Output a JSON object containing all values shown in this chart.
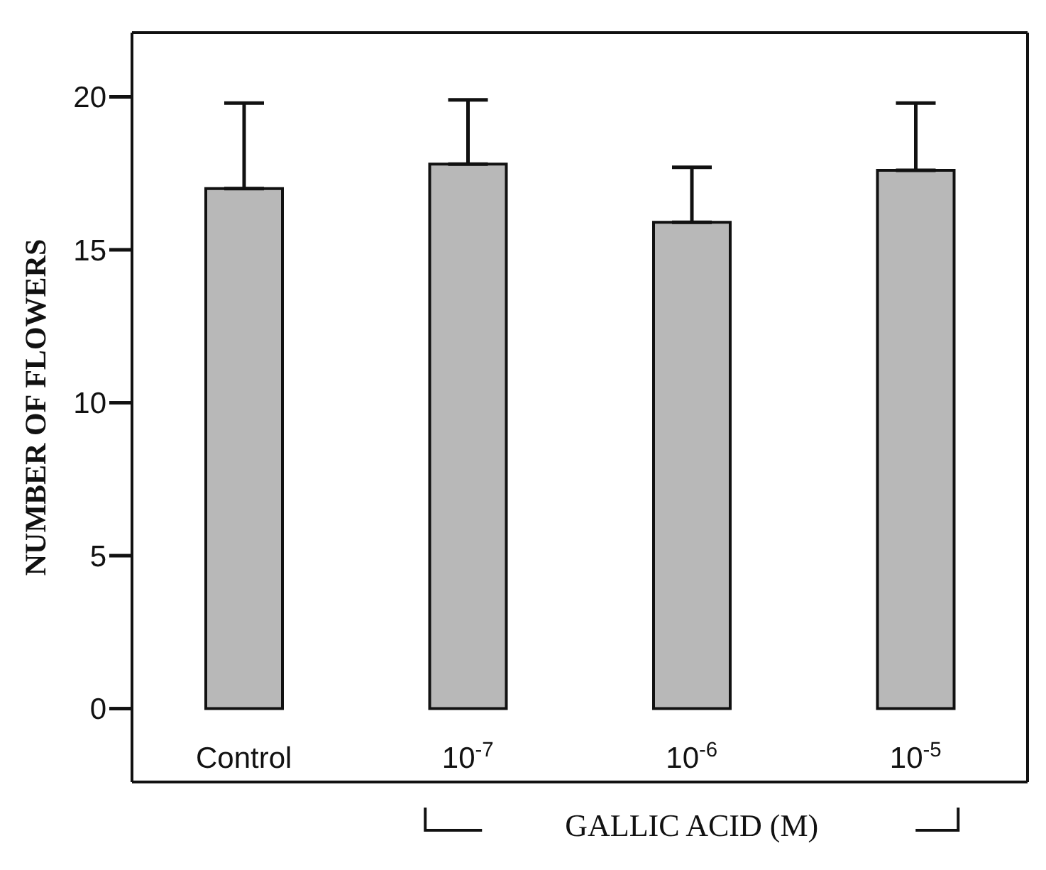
{
  "chart_data": {
    "type": "bar",
    "xlabel": "GALLIC ACID (M)",
    "ylabel": "NUMBER OF FLOWERS",
    "categories": [
      "Control",
      "10$^{-7}$",
      "10$^{-6}$",
      "10$^{-5}$"
    ],
    "values": [
      17.0,
      17.8,
      15.9,
      17.6
    ],
    "errors": [
      [
        17.0,
        19.8
      ],
      [
        17.8,
        19.9
      ],
      [
        15.9,
        17.7
      ],
      [
        17.6,
        19.8
      ]
    ],
    "color": "#b8b8b8",
    "ylim": [
      -2.4,
      22.1
    ],
    "yticks": [
      0,
      5,
      10,
      15,
      20
    ],
    "grid": false
  }
}
